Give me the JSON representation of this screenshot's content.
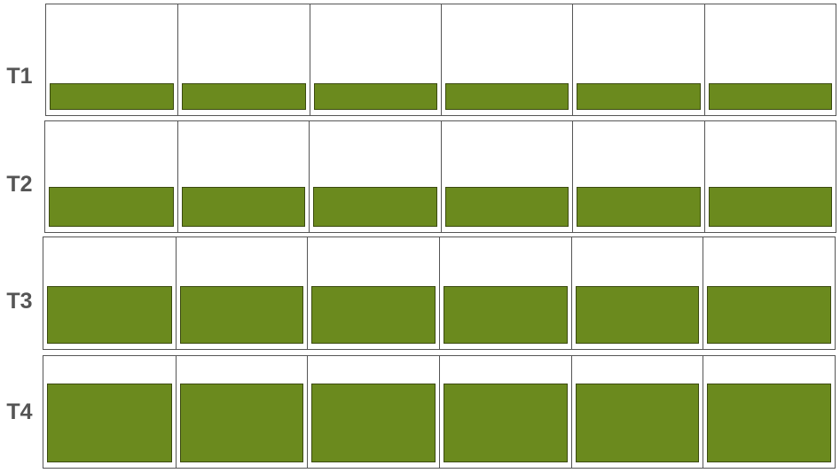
{
  "colors": {
    "fill": "#6b8a1e",
    "frame": "#555555",
    "label": "#555555"
  },
  "rows": [
    {
      "label": "T1",
      "levels": [
        0.28,
        0.28,
        0.28,
        0.28,
        0.28,
        0.28
      ]
    },
    {
      "label": "T2",
      "levels": [
        0.42,
        0.42,
        0.42,
        0.42,
        0.42,
        0.42
      ]
    },
    {
      "label": "T3",
      "levels": [
        0.6,
        0.6,
        0.6,
        0.6,
        0.6,
        0.6
      ]
    },
    {
      "label": "T4",
      "levels": [
        0.82,
        0.82,
        0.82,
        0.82,
        0.82,
        0.82
      ]
    }
  ]
}
